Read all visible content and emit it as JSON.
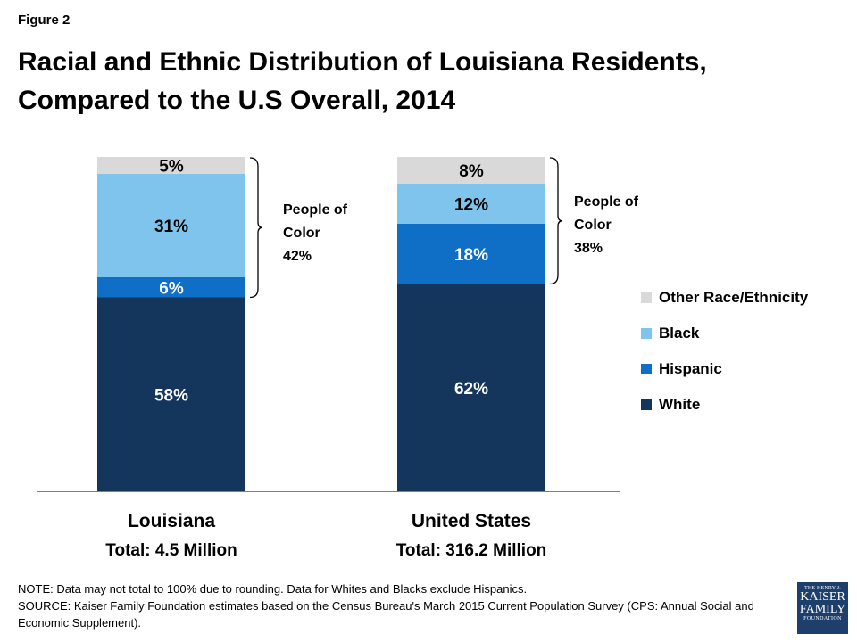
{
  "figure_label": "Figure 2",
  "title_line1": "Racial and Ethnic Distribution of Louisiana Residents,",
  "title_line2": "Compared to the U.S Overall, 2014",
  "colors": {
    "other": "#d9d9d9",
    "black": "#7ec4ec",
    "hispanic": "#0f6fc6",
    "white": "#14365d"
  },
  "chart_data": {
    "type": "bar",
    "stacked": true,
    "categories": [
      "Louisiana",
      "United States"
    ],
    "category_totals": [
      "Total: 4.5 Million",
      "Total: 316.2 Million"
    ],
    "series": [
      {
        "name": "White",
        "key": "white",
        "values": [
          58,
          62
        ],
        "labels": [
          "58%",
          "62%"
        ]
      },
      {
        "name": "Hispanic",
        "key": "hispanic",
        "values": [
          6,
          18
        ],
        "labels": [
          "6%",
          "18%"
        ]
      },
      {
        "name": "Black",
        "key": "black",
        "values": [
          31,
          12
        ],
        "labels": [
          "31%",
          "12%"
        ]
      },
      {
        "name": "Other Race/Ethnicity",
        "key": "other",
        "values": [
          5,
          8
        ],
        "labels": [
          "5%",
          "8%"
        ]
      }
    ],
    "ylim": [
      0,
      100
    ],
    "legend_position": "right",
    "annotations": [
      {
        "lines": [
          "People of",
          "Color",
          "42%"
        ]
      },
      {
        "lines": [
          "People of",
          "Color",
          "38%"
        ]
      }
    ]
  },
  "notes": {
    "note": "NOTE: Data may not total to 100% due to rounding. Data for Whites and Blacks exclude Hispanics.",
    "source": "SOURCE: Kaiser Family Foundation estimates based on the Census Bureau's March 2015 Current Population Survey (CPS: Annual Social and Economic Supplement)."
  },
  "logo": {
    "line1": "THE HENRY J.",
    "line2": "KAISER",
    "line3": "FAMILY",
    "line4": "FOUNDATION"
  }
}
